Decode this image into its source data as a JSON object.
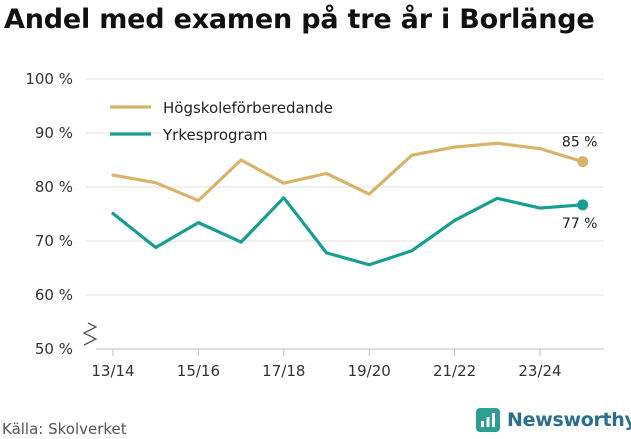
{
  "chart_data": {
    "type": "line",
    "title": "Andel med examen på tre år i Borlänge",
    "x": [
      "13/14",
      "14/15",
      "15/16",
      "16/17",
      "17/18",
      "18/19",
      "19/20",
      "20/21",
      "21/22",
      "22/23",
      "23/24",
      "24/25"
    ],
    "x_tick_labels": [
      "13/14",
      "15/16",
      "17/18",
      "19/20",
      "21/22",
      "23/24"
    ],
    "ylim": [
      50,
      100
    ],
    "y_ticks": [
      50,
      60,
      70,
      80,
      90,
      100
    ],
    "y_tick_labels": [
      "50 %",
      "60 %",
      "70 %",
      "80 %",
      "90 %",
      "100 %"
    ],
    "axis_break": true,
    "legend_position": "top-left",
    "series": [
      {
        "name": "Högskoleförberedande",
        "color": "#d9b36a",
        "values": [
          82.2,
          80.8,
          77.5,
          85.0,
          80.7,
          82.5,
          78.7,
          85.9,
          87.4,
          88.1,
          87.1,
          84.7
        ],
        "end_label": "85 %"
      },
      {
        "name": "Yrkesprogram",
        "color": "#169e93",
        "values": [
          75.1,
          68.8,
          73.4,
          69.8,
          78.0,
          67.8,
          65.6,
          68.2,
          73.8,
          77.9,
          76.1,
          76.7
        ],
        "end_label": "77 %"
      }
    ]
  },
  "footer": {
    "source": "Källa: Skolverket",
    "brand": "Newsworthy"
  }
}
